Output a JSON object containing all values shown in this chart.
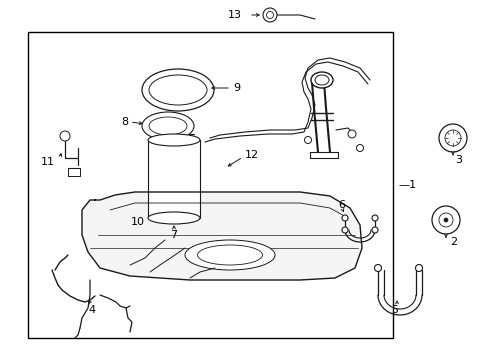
{
  "bg_color": "#ffffff",
  "line_color": "#1a1a1a",
  "text_color": "#000000",
  "figsize": [
    4.9,
    3.6
  ],
  "dpi": 100
}
